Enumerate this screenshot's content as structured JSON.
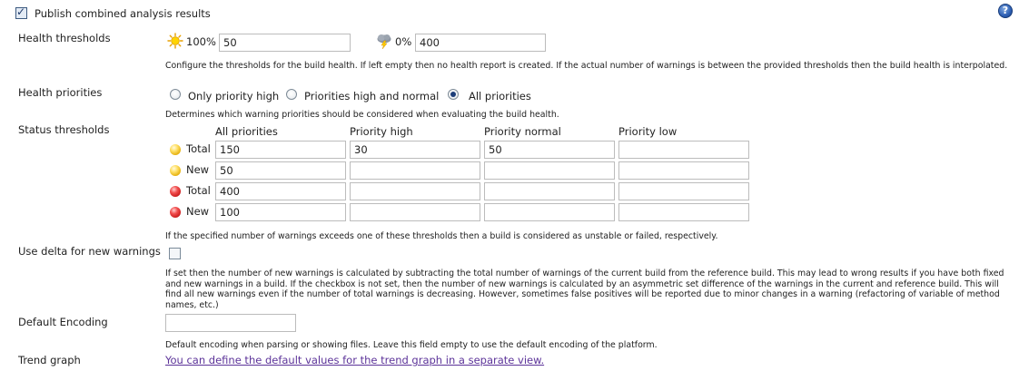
{
  "publish": {
    "label": "Publish combined analysis results",
    "checked": true,
    "help_icon": "help-icon"
  },
  "health_thresholds": {
    "label": "Health thresholds",
    "healthy_percent": "100%",
    "healthy_value": "50",
    "unhealthy_percent": "0%",
    "unhealthy_value": "400",
    "description": "Configure the thresholds for the build health. If left empty then no health report is created. If the actual number of warnings is between the provided thresholds then the build health is interpolated."
  },
  "health_priorities": {
    "label": "Health priorities",
    "options": [
      "Only priority high",
      "Priorities high and normal",
      "All priorities"
    ],
    "selected": "All priorities",
    "description": "Determines which warning priorities should be considered when evaluating the build health."
  },
  "status_thresholds": {
    "label": "Status thresholds",
    "columns": [
      "All priorities",
      "Priority high",
      "Priority normal",
      "Priority low"
    ],
    "rows": [
      {
        "label": "Total",
        "status": "unstable",
        "values": [
          "150",
          "30",
          "50",
          ""
        ]
      },
      {
        "label": "New",
        "status": "unstable",
        "values": [
          "50",
          "",
          "",
          ""
        ]
      },
      {
        "label": "Total",
        "status": "failed",
        "values": [
          "400",
          "",
          "",
          ""
        ]
      },
      {
        "label": "New",
        "status": "failed",
        "values": [
          "100",
          "",
          "",
          ""
        ]
      }
    ],
    "description": "If the specified number of warnings exceeds one of these thresholds then a build is considered as unstable or failed, respectively."
  },
  "delta": {
    "label": "Use delta for new warnings",
    "checked": false,
    "description": "If set then the number of new warnings is calculated by subtracting the total number of warnings of the current build from the reference build. This may lead to wrong results if you have both fixed and new warnings in a build. If the checkbox is not set, then the number of new warnings is calculated by an asymmetric set difference of the warnings in the current and reference build. This will find all new warnings even if the number of total warnings is decreasing. However, sometimes false positives will be reported due to minor changes in a warning (refactoring of variable of method names, etc.)"
  },
  "encoding": {
    "label": "Default Encoding",
    "value": "",
    "description": "Default encoding when parsing or showing files. Leave this field empty to use the default encoding of the platform."
  },
  "trend": {
    "label": "Trend graph",
    "link_text": "You can define the default values for the trend graph in a separate view."
  },
  "colors": {
    "link": "#5c3399",
    "unstable": "#f0c000",
    "failed": "#d42020",
    "help": "#2d5fb3"
  }
}
